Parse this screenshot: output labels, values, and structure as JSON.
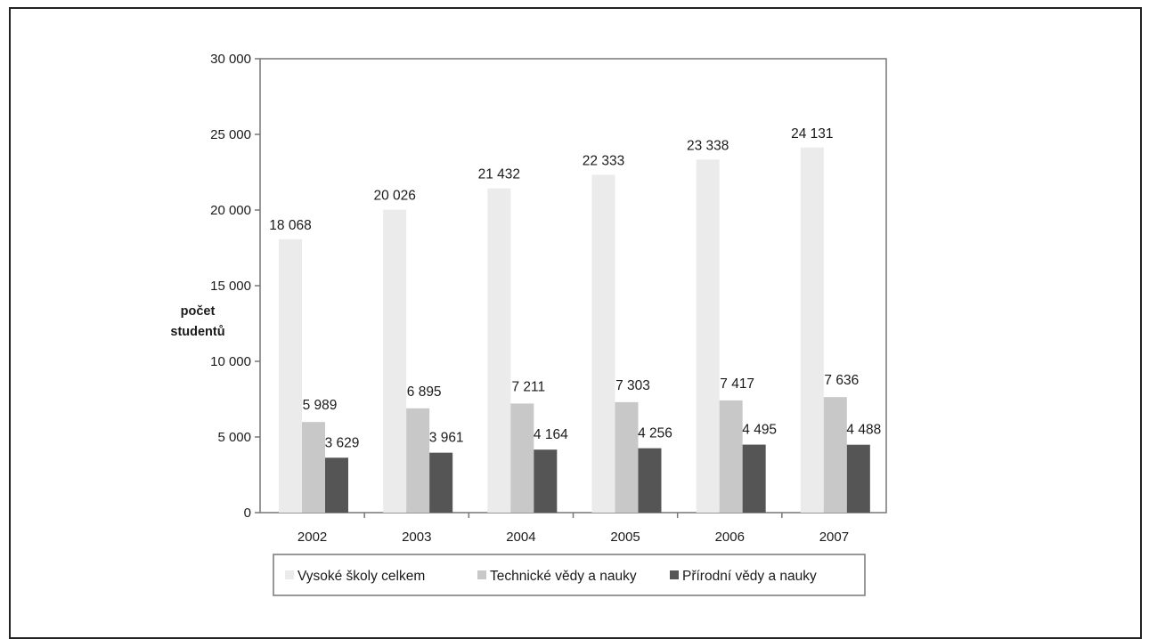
{
  "chart_data": {
    "type": "bar",
    "categories": [
      "2002",
      "2003",
      "2004",
      "2005",
      "2006",
      "2007"
    ],
    "series": [
      {
        "name": "Vysoké školy celkem",
        "values": [
          18068,
          20026,
          21432,
          22333,
          23338,
          24131
        ],
        "labels": [
          "18 068",
          "20 026",
          "21 432",
          "22 333",
          "23 338",
          "24 131"
        ],
        "color": "#ebebeb"
      },
      {
        "name": "Technické vědy a nauky",
        "values": [
          5989,
          6895,
          7211,
          7303,
          7417,
          7636
        ],
        "labels": [
          "5 989",
          "6 895",
          "7 211",
          "7 303",
          "7 417",
          "7 636"
        ],
        "color": "#c8c8c8"
      },
      {
        "name": "Přírodní vědy a nauky",
        "values": [
          3629,
          3961,
          4164,
          4256,
          4495,
          4488
        ],
        "labels": [
          "3 629",
          "3 961",
          "4 164",
          "4 256",
          "4 495",
          "4 488"
        ],
        "color": "#555555"
      }
    ],
    "ylabel_lines": [
      "počet",
      "studentů"
    ],
    "ylim": [
      0,
      30000
    ],
    "yticks": [
      0,
      5000,
      10000,
      15000,
      20000,
      25000,
      30000
    ],
    "ytick_labels": [
      "0",
      "5 000",
      "10 000",
      "15 000",
      "20 000",
      "25 000",
      "30 000"
    ],
    "grid": false,
    "legend_position": "bottom"
  }
}
